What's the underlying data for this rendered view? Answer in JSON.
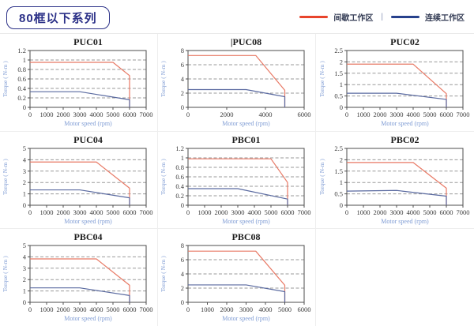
{
  "header": {
    "badge_label": "80框以下系列",
    "legend": {
      "intermittent_label": "间歇工作区",
      "separator": "|",
      "continuous_label": "连续工作区"
    }
  },
  "colors": {
    "legend_intermittent": "#e8442c",
    "legend_continuous": "#27418c",
    "line_intermittent": "#e87965",
    "line_continuous": "#5a6aa0",
    "grid_line": "#9a9a9a",
    "plot_border": "#4d4d4d",
    "tick_text": "#3b3b3b",
    "title_text": "#1c1c1c",
    "axis_label_text": "#7f9cd4",
    "badge": "#2b3087"
  },
  "chart_data": [
    {
      "type": "line",
      "title": "PUC01",
      "title_cursor": false,
      "xlabel": "Motor speed (rpm)",
      "ylabel": "Torque ( N-m )",
      "xlim": [
        0,
        7000
      ],
      "xtick_step": 1000,
      "ylim": [
        0,
        1.2
      ],
      "ytick_step": 0.2,
      "grid": "horizontal-dashed",
      "series": [
        {
          "name": "间歇工作区",
          "zone": "intermittent",
          "points": [
            [
              0,
              0.95
            ],
            [
              5000,
              0.95
            ],
            [
              6000,
              0.67
            ],
            [
              6000,
              0
            ]
          ]
        },
        {
          "name": "连续工作区",
          "zone": "continuous",
          "points": [
            [
              0,
              0.33
            ],
            [
              3000,
              0.33
            ],
            [
              6000,
              0.16
            ],
            [
              6000,
              0
            ]
          ]
        }
      ]
    },
    {
      "type": "line",
      "title": "PUC08",
      "title_cursor": true,
      "xlabel": "Motor speed (rpm)",
      "ylabel": "Torque ( N-m )",
      "xlim": [
        0,
        6000
      ],
      "xtick_step": 2000,
      "ylim": [
        0,
        8
      ],
      "ytick_step": 2,
      "grid": "horizontal-dashed",
      "series": [
        {
          "name": "间歇工作区",
          "zone": "intermittent",
          "points": [
            [
              0,
              7.3
            ],
            [
              3500,
              7.3
            ],
            [
              5000,
              2.4
            ],
            [
              5000,
              0
            ]
          ]
        },
        {
          "name": "连续工作区",
          "zone": "continuous",
          "points": [
            [
              0,
              2.5
            ],
            [
              3000,
              2.5
            ],
            [
              5000,
              1.5
            ],
            [
              5000,
              0
            ]
          ]
        }
      ]
    },
    {
      "type": "line",
      "title": "PUC02",
      "title_cursor": false,
      "xlabel": "Motor speed (rpm)",
      "ylabel": "Torque ( N-m )",
      "xlim": [
        0,
        7000
      ],
      "xtick_step": 1000,
      "ylim": [
        0,
        2.5
      ],
      "ytick_step": 0.5,
      "grid": "horizontal-dashed",
      "series": [
        {
          "name": "间歇工作区",
          "zone": "intermittent",
          "points": [
            [
              0,
              1.9
            ],
            [
              4000,
              1.9
            ],
            [
              6000,
              0.6
            ],
            [
              6000,
              0
            ]
          ]
        },
        {
          "name": "连续工作区",
          "zone": "continuous",
          "points": [
            [
              0,
              0.62
            ],
            [
              3000,
              0.62
            ],
            [
              6000,
              0.35
            ],
            [
              6000,
              0
            ]
          ]
        }
      ]
    },
    {
      "type": "line",
      "title": "PUC04",
      "title_cursor": false,
      "xlabel": "Motor speed (rpm)",
      "ylabel": "Torque ( N-m )",
      "xlim": [
        0,
        7000
      ],
      "xtick_step": 1000,
      "ylim": [
        0,
        5
      ],
      "ytick_step": 1,
      "grid": "horizontal-dashed",
      "series": [
        {
          "name": "间歇工作区",
          "zone": "intermittent",
          "points": [
            [
              0,
              3.8
            ],
            [
              4000,
              3.8
            ],
            [
              6000,
              1.5
            ],
            [
              6000,
              0
            ]
          ]
        },
        {
          "name": "连续工作区",
          "zone": "continuous",
          "points": [
            [
              0,
              1.35
            ],
            [
              3000,
              1.35
            ],
            [
              6000,
              0.65
            ],
            [
              6000,
              0
            ]
          ]
        }
      ]
    },
    {
      "type": "line",
      "title": "PBC01",
      "title_cursor": false,
      "xlabel": "Motor speed (rpm)",
      "ylabel": "Torque ( N-m )",
      "xlim": [
        0,
        7000
      ],
      "xtick_step": 1000,
      "ylim": [
        0,
        1.2
      ],
      "ytick_step": 0.2,
      "grid": "horizontal-dashed",
      "series": [
        {
          "name": "间歇工作区",
          "zone": "intermittent",
          "points": [
            [
              0,
              0.98
            ],
            [
              5000,
              0.98
            ],
            [
              6000,
              0.48
            ],
            [
              6000,
              0
            ]
          ]
        },
        {
          "name": "连续工作区",
          "zone": "continuous",
          "points": [
            [
              0,
              0.35
            ],
            [
              3000,
              0.35
            ],
            [
              6000,
              0.13
            ],
            [
              6000,
              0
            ]
          ]
        }
      ]
    },
    {
      "type": "line",
      "title": "PBC02",
      "title_cursor": false,
      "xlabel": "Motor speed (rpm)",
      "ylabel": "Torque ( N-m )",
      "xlim": [
        0,
        7000
      ],
      "xtick_step": 1000,
      "ylim": [
        0,
        2.5
      ],
      "ytick_step": 0.5,
      "grid": "horizontal-dashed",
      "series": [
        {
          "name": "间歇工作区",
          "zone": "intermittent",
          "points": [
            [
              0,
              1.88
            ],
            [
              4000,
              1.88
            ],
            [
              6000,
              0.75
            ],
            [
              6000,
              0
            ]
          ]
        },
        {
          "name": "连续工作区",
          "zone": "continuous",
          "points": [
            [
              0,
              0.62
            ],
            [
              3000,
              0.65
            ],
            [
              6000,
              0.4
            ],
            [
              6000,
              0
            ]
          ]
        }
      ]
    },
    {
      "type": "line",
      "title": "PBC04",
      "title_cursor": false,
      "xlabel": "Motor speed (rpm)",
      "ylabel": "Torque ( N-m )",
      "xlim": [
        0,
        7000
      ],
      "xtick_step": 1000,
      "ylim": [
        0,
        5
      ],
      "ytick_step": 1,
      "grid": "horizontal-dashed",
      "series": [
        {
          "name": "间歇工作区",
          "zone": "intermittent",
          "points": [
            [
              0,
              3.82
            ],
            [
              4000,
              3.82
            ],
            [
              6000,
              1.5
            ],
            [
              6000,
              0
            ]
          ]
        },
        {
          "name": "连续工作区",
          "zone": "continuous",
          "points": [
            [
              0,
              1.27
            ],
            [
              3000,
              1.27
            ],
            [
              6000,
              0.6
            ],
            [
              6000,
              0
            ]
          ]
        }
      ]
    },
    {
      "type": "line",
      "title": "PBC08",
      "title_cursor": false,
      "xlabel": "Motor speed (rpm)",
      "ylabel": "Torque ( N-m )",
      "xlim": [
        0,
        6000
      ],
      "xtick_step": 1000,
      "ylim": [
        0,
        8
      ],
      "ytick_step": 2,
      "grid": "horizontal-dashed",
      "series": [
        {
          "name": "间歇工作区",
          "zone": "intermittent",
          "points": [
            [
              0,
              7.2
            ],
            [
              3500,
              7.2
            ],
            [
              5000,
              2.4
            ],
            [
              5000,
              0
            ]
          ]
        },
        {
          "name": "连续工作区",
          "zone": "continuous",
          "points": [
            [
              0,
              2.45
            ],
            [
              3000,
              2.45
            ],
            [
              5000,
              1.5
            ],
            [
              5000,
              0
            ]
          ]
        }
      ]
    }
  ]
}
